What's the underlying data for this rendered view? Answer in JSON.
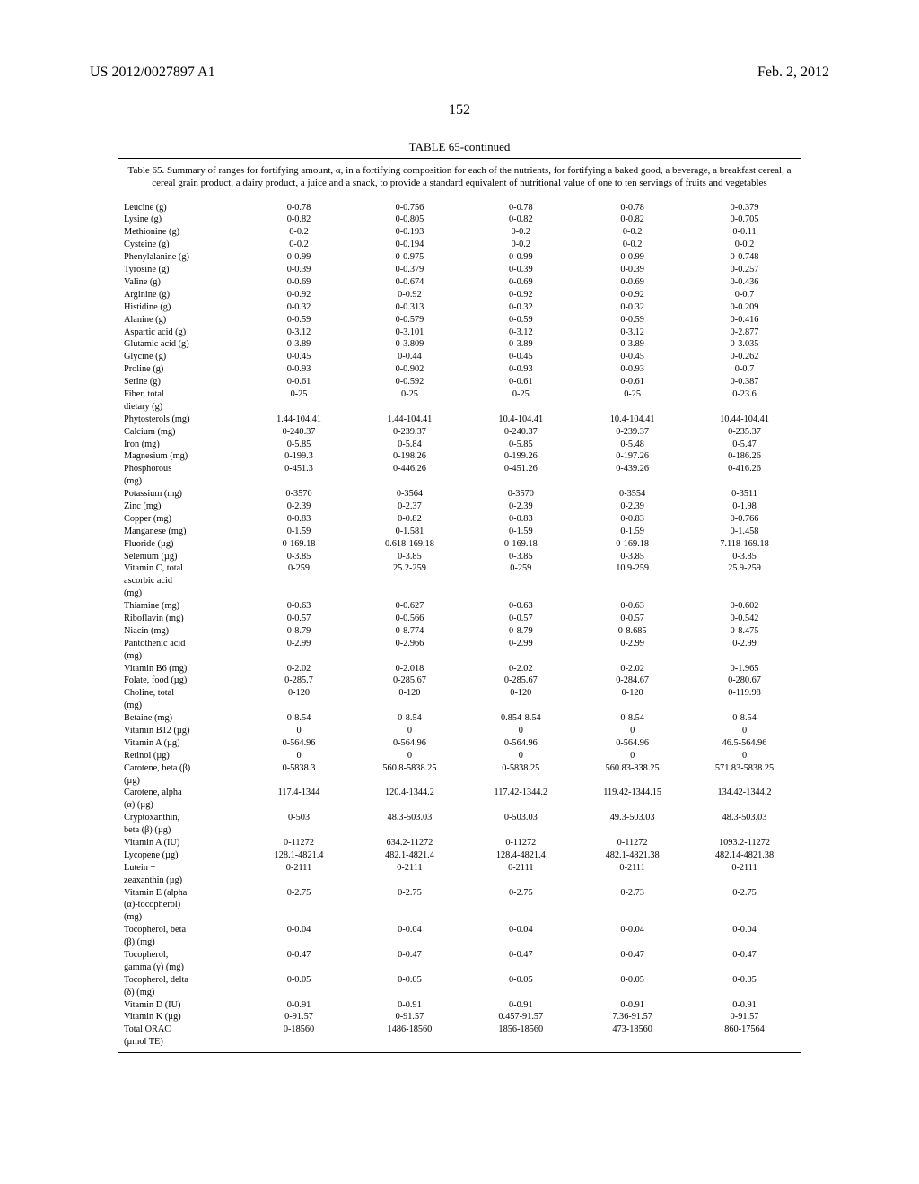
{
  "header": {
    "left": "US 2012/0027897 A1",
    "right": "Feb. 2, 2012"
  },
  "page_number": "152",
  "table": {
    "title": "TABLE 65-continued",
    "caption": "Table 65. Summary of ranges for fortifying amount, α, in a fortifying composition for each of the nutrients, for fortifying a baked good, a beverage, a breakfast cereal, a cereal grain product, a dairy product, a juice and a snack, to provide a standard equivalent of nutritional value of one to ten servings of fruits and vegetables",
    "rows": [
      {
        "label": "Leucine (g)",
        "v": [
          "0-0.78",
          "0-0.756",
          "0-0.78",
          "0-0.78",
          "0-0.379"
        ]
      },
      {
        "label": "Lysine (g)",
        "v": [
          "0-0.82",
          "0-0.805",
          "0-0.82",
          "0-0.82",
          "0-0.705"
        ]
      },
      {
        "label": "Methionine (g)",
        "v": [
          "0-0.2",
          "0-0.193",
          "0-0.2",
          "0-0.2",
          "0-0.11"
        ]
      },
      {
        "label": "Cysteine (g)",
        "v": [
          "0-0.2",
          "0-0.194",
          "0-0.2",
          "0-0.2",
          "0-0.2"
        ]
      },
      {
        "label": "Phenylalanine (g)",
        "v": [
          "0-0.99",
          "0-0.975",
          "0-0.99",
          "0-0.99",
          "0-0.748"
        ]
      },
      {
        "label": "Tyrosine (g)",
        "v": [
          "0-0.39",
          "0-0.379",
          "0-0.39",
          "0-0.39",
          "0-0.257"
        ]
      },
      {
        "label": "Valine (g)",
        "v": [
          "0-0.69",
          "0-0.674",
          "0-0.69",
          "0-0.69",
          "0-0.436"
        ]
      },
      {
        "label": "Arginine (g)",
        "v": [
          "0-0.92",
          "0-0.92",
          "0-0.92",
          "0-0.92",
          "0-0.7"
        ]
      },
      {
        "label": "Histidine (g)",
        "v": [
          "0-0.32",
          "0-0.313",
          "0-0.32",
          "0-0.32",
          "0-0.209"
        ]
      },
      {
        "label": "Alanine (g)",
        "v": [
          "0-0.59",
          "0-0.579",
          "0-0.59",
          "0-0.59",
          "0-0.416"
        ]
      },
      {
        "label": "Aspartic acid (g)",
        "v": [
          "0-3.12",
          "0-3.101",
          "0-3.12",
          "0-3.12",
          "0-2.877"
        ]
      },
      {
        "label": "Glutamic acid (g)",
        "v": [
          "0-3.89",
          "0-3.809",
          "0-3.89",
          "0-3.89",
          "0-3.035"
        ]
      },
      {
        "label": "Glycine (g)",
        "v": [
          "0-0.45",
          "0-0.44",
          "0-0.45",
          "0-0.45",
          "0-0.262"
        ]
      },
      {
        "label": "Proline (g)",
        "v": [
          "0-0.93",
          "0-0.902",
          "0-0.93",
          "0-0.93",
          "0-0.7"
        ]
      },
      {
        "label": "Serine (g)",
        "v": [
          "0-0.61",
          "0-0.592",
          "0-0.61",
          "0-0.61",
          "0-0.387"
        ]
      },
      {
        "label": "Fiber, total dietary (g)",
        "v": [
          "0-25",
          "0-25",
          "0-25",
          "0-25",
          "0-23.6"
        ]
      },
      {
        "label": "Phytosterols (mg)",
        "v": [
          "1.44-104.41",
          "1.44-104.41",
          "10.4-104.41",
          "10.4-104.41",
          "10.44-104.41"
        ]
      },
      {
        "label": "Calcium (mg)",
        "v": [
          "0-240.37",
          "0-239.37",
          "0-240.37",
          "0-239.37",
          "0-235.37"
        ]
      },
      {
        "label": "Iron (mg)",
        "v": [
          "0-5.85",
          "0-5.84",
          "0-5.85",
          "0-5.48",
          "0-5.47"
        ]
      },
      {
        "label": "Magnesium (mg)",
        "v": [
          "0-199.3",
          "0-198.26",
          "0-199.26",
          "0-197.26",
          "0-186.26"
        ]
      },
      {
        "label": "Phosphorous (mg)",
        "v": [
          "0-451.3",
          "0-446.26",
          "0-451.26",
          "0-439.26",
          "0-416.26"
        ]
      },
      {
        "label": "Potassium (mg)",
        "v": [
          "0-3570",
          "0-3564",
          "0-3570",
          "0-3554",
          "0-3511"
        ]
      },
      {
        "label": "Zinc (mg)",
        "v": [
          "0-2.39",
          "0-2.37",
          "0-2.39",
          "0-2.39",
          "0-1.98"
        ]
      },
      {
        "label": "Copper (mg)",
        "v": [
          "0-0.83",
          "0-0.82",
          "0-0.83",
          "0-0.83",
          "0-0.766"
        ]
      },
      {
        "label": "Manganese (mg)",
        "v": [
          "0-1.59",
          "0-1.581",
          "0-1.59",
          "0-1.59",
          "0-1.458"
        ]
      },
      {
        "label": "Fluoride (µg)",
        "v": [
          "0-169.18",
          "0.618-169.18",
          "0-169.18",
          "0-169.18",
          "7.118-169.18"
        ]
      },
      {
        "label": "Selenium (µg)",
        "v": [
          "0-3.85",
          "0-3.85",
          "0-3.85",
          "0-3.85",
          "0-3.85"
        ]
      },
      {
        "label": "Vitamin C, total ascorbic acid (mg)",
        "v": [
          "0-259",
          "25.2-259",
          "0-259",
          "10.9-259",
          "25.9-259"
        ]
      },
      {
        "label": "Thiamine (mg)",
        "v": [
          "0-0.63",
          "0-0.627",
          "0-0.63",
          "0-0.63",
          "0-0.602"
        ]
      },
      {
        "label": "Riboflavin (mg)",
        "v": [
          "0-0.57",
          "0-0.566",
          "0-0.57",
          "0-0.57",
          "0-0.542"
        ]
      },
      {
        "label": "Niacin (mg)",
        "v": [
          "0-8.79",
          "0-8.774",
          "0-8.79",
          "0-8.685",
          "0-8.475"
        ]
      },
      {
        "label": "Pantothenic acid (mg)",
        "v": [
          "0-2.99",
          "0-2.966",
          "0-2.99",
          "0-2.99",
          "0-2.99"
        ]
      },
      {
        "label": "Vitamin B6 (mg)",
        "v": [
          "0-2.02",
          "0-2.018",
          "0-2.02",
          "0-2.02",
          "0-1.965"
        ]
      },
      {
        "label": "Folate, food (µg)",
        "v": [
          "0-285.7",
          "0-285.67",
          "0-285.67",
          "0-284.67",
          "0-280.67"
        ]
      },
      {
        "label": "Choline, total (mg)",
        "v": [
          "0-120",
          "0-120",
          "0-120",
          "0-120",
          "0-119.98"
        ]
      },
      {
        "label": "Betaine (mg)",
        "v": [
          "0-8.54",
          "0-8.54",
          "0.854-8.54",
          "0-8.54",
          "0-8.54"
        ]
      },
      {
        "label": "Vitamin B12 (µg)",
        "v": [
          "0",
          "0",
          "0",
          "0",
          "0"
        ]
      },
      {
        "label": "Vitamin A (µg)",
        "v": [
          "0-564.96",
          "0-564.96",
          "0-564.96",
          "0-564.96",
          "46.5-564.96"
        ]
      },
      {
        "label": "Retinol (µg)",
        "v": [
          "0",
          "0",
          "0",
          "0",
          "0"
        ]
      },
      {
        "label": "Carotene, beta (β) (µg)",
        "v": [
          "0-5838.3",
          "560.8-5838.25",
          "0-5838.25",
          "560.83-838.25",
          "571.83-5838.25"
        ]
      },
      {
        "label": "Carotene, alpha (α) (µg)",
        "v": [
          "117.4-1344",
          "120.4-1344.2",
          "117.42-1344.2",
          "119.42-1344.15",
          "134.42-1344.2"
        ]
      },
      {
        "label": "Cryptoxanthin, beta (β) (µg)",
        "v": [
          "0-503",
          "48.3-503.03",
          "0-503.03",
          "49.3-503.03",
          "48.3-503.03"
        ]
      },
      {
        "label": "Vitamin A (IU)",
        "v": [
          "0-11272",
          "634.2-11272",
          "0-11272",
          "0-11272",
          "1093.2-11272"
        ]
      },
      {
        "label": "Lycopene (µg)",
        "v": [
          "128.1-4821.4",
          "482.1-4821.4",
          "128.4-4821.4",
          "482.1-4821.38",
          "482.14-4821.38"
        ]
      },
      {
        "label": "Lutein + zeaxanthin (µg)",
        "v": [
          "0-2111",
          "0-2111",
          "0-2111",
          "0-2111",
          "0-2111"
        ]
      },
      {
        "label": "Vitamin E (alpha (α)-tocopherol) (mg)",
        "v": [
          "0-2.75",
          "0-2.75",
          "0-2.75",
          "0-2.73",
          "0-2.75"
        ]
      },
      {
        "label": "Tocopherol, beta (β) (mg)",
        "v": [
          "0-0.04",
          "0-0.04",
          "0-0.04",
          "0-0.04",
          "0-0.04"
        ]
      },
      {
        "label": "Tocopherol, gamma (γ) (mg)",
        "v": [
          "0-0.47",
          "0-0.47",
          "0-0.47",
          "0-0.47",
          "0-0.47"
        ]
      },
      {
        "label": "Tocopherol, delta (δ) (mg)",
        "v": [
          "0-0.05",
          "0-0.05",
          "0-0.05",
          "0-0.05",
          "0-0.05"
        ]
      },
      {
        "label": "Vitamin D (IU)",
        "v": [
          "0-0.91",
          "0-0.91",
          "0-0.91",
          "0-0.91",
          "0-0.91"
        ]
      },
      {
        "label": "Vitamin K (µg)",
        "v": [
          "0-91.57",
          "0-91.57",
          "0.457-91.57",
          "7.36-91.57",
          "0-91.57"
        ]
      },
      {
        "label": "Total ORAC (µmol TE)",
        "v": [
          "0-18560",
          "1486-18560",
          "1856-18560",
          "473-18560",
          "860-17564"
        ]
      }
    ],
    "label_wraps": {
      "Fiber, total dietary (g)": [
        "Fiber, total",
        "dietary (g)"
      ],
      "Phosphorous (mg)": [
        "Phosphorous",
        "(mg)"
      ],
      "Vitamin C, total ascorbic acid (mg)": [
        "Vitamin C, total",
        "ascorbic acid",
        "(mg)"
      ],
      "Pantothenic acid (mg)": [
        "Pantothenic acid",
        "(mg)"
      ],
      "Choline, total (mg)": [
        "Choline, total",
        "(mg)"
      ],
      "Carotene, beta (β) (µg)": [
        "Carotene, beta (β)",
        "(µg)"
      ],
      "Carotene, alpha (α) (µg)": [
        "Carotene, alpha",
        "(α) (µg)"
      ],
      "Cryptoxanthin, beta (β) (µg)": [
        "Cryptoxanthin,",
        "beta (β) (µg)"
      ],
      "Lutein + zeaxanthin (µg)": [
        "Lutein +",
        "zeaxanthin (µg)"
      ],
      "Vitamin E (alpha (α)-tocopherol) (mg)": [
        "Vitamin E (alpha",
        "(α)-tocopherol)",
        "(mg)"
      ],
      "Tocopherol, beta (β) (mg)": [
        "Tocopherol, beta",
        "(β) (mg)"
      ],
      "Tocopherol, gamma (γ) (mg)": [
        "Tocopherol,",
        "gamma (γ) (mg)"
      ],
      "Tocopherol, delta (δ) (mg)": [
        "Tocopherol, delta",
        "(δ) (mg)"
      ],
      "Total ORAC (µmol TE)": [
        "Total ORAC",
        "(µmol TE)"
      ]
    }
  }
}
